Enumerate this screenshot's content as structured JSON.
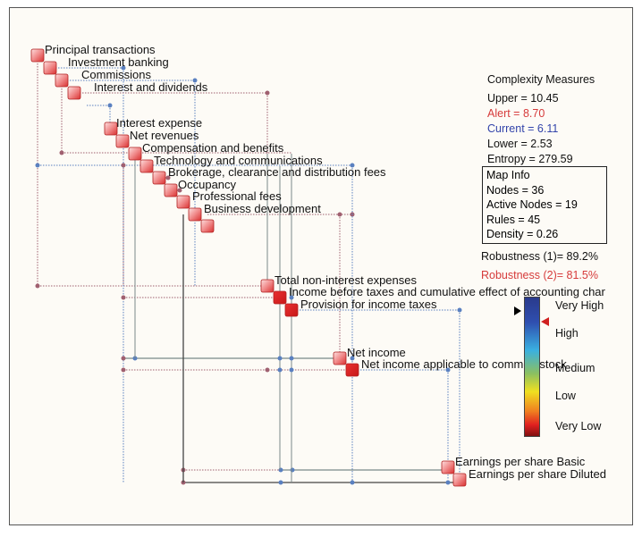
{
  "nodes": [
    {
      "label": "Principal transactions",
      "style": "light"
    },
    {
      "label": "Investment banking",
      "style": "light"
    },
    {
      "label": "Commissions",
      "style": "light"
    },
    {
      "label": "Interest and dividends",
      "style": "light"
    },
    {
      "label": "Interest expense",
      "style": "light"
    },
    {
      "label": "Net revenues",
      "style": "light"
    },
    {
      "label": "Compensation and benefits",
      "style": "light"
    },
    {
      "label": "Technology and communications",
      "style": "light"
    },
    {
      "label": "Brokerage, clearance and distribution fees",
      "style": "light"
    },
    {
      "label": "Occupancy",
      "style": "light"
    },
    {
      "label": "Professional fees",
      "style": "light"
    },
    {
      "label": "Business development",
      "style": "light"
    },
    {
      "label": "",
      "style": "light"
    },
    {
      "label": "Total non-interest expenses",
      "style": "light"
    },
    {
      "label": "Income before taxes and cumulative effect of accounting char",
      "style": "dark"
    },
    {
      "label": "Provision for income taxes",
      "style": "dark"
    },
    {
      "label": "Net income",
      "style": "light"
    },
    {
      "label": "Net income applicable to common stock",
      "style": "dark"
    },
    {
      "label": "Earnings per share Basic",
      "style": "light"
    },
    {
      "label": "Earnings per share Diluted",
      "style": "light"
    }
  ],
  "complexity": {
    "title": "Complexity Measures",
    "upper": "Upper = 10.45",
    "alert": "Alert = 8.70",
    "current": "Current = 6.11",
    "lower": "Lower = 2.53",
    "entropy": "Entropy = 279.59"
  },
  "map_info": {
    "title": "Map Info",
    "nodes": "Nodes = 36",
    "active_nodes": "Active Nodes = 19",
    "rules": "Rules = 45",
    "density": "Density = 0.26"
  },
  "robustness": {
    "r1": "Robustness (1)= 89.2%",
    "r2": "Robustness (2)= 81.5%"
  },
  "scale": {
    "levels": [
      "Very High",
      "High",
      "Medium",
      "Low",
      "Very Low"
    ],
    "colors": {
      "very_high": "#2a3a8c",
      "high": "#3ab0e0",
      "medium": "#8cc060",
      "low": "#f0e020",
      "very_low": "#801010"
    }
  },
  "colors": {
    "node_red": "#e02020",
    "node_light": "#f4a0a0",
    "link_blue": "#5a80c0",
    "link_red": "#a06070",
    "alert": "#d63b3b",
    "current": "#3344aa"
  }
}
